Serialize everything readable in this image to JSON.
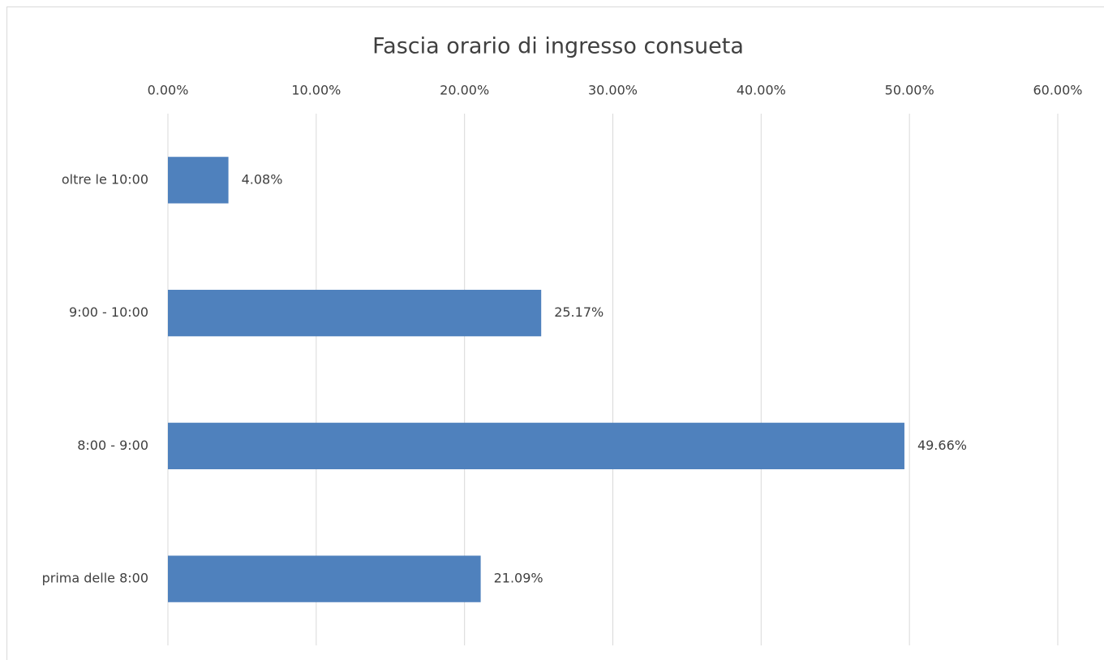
{
  "chart_data": {
    "type": "barh",
    "title": "Fascia orario di ingresso consueta",
    "categories": [
      "oltre le 10:00",
      "9:00 - 10:00",
      "8:00 - 9:00",
      "prima delle 8:00"
    ],
    "values": [
      4.08,
      25.17,
      49.66,
      21.09
    ],
    "value_labels": [
      "4.08%",
      "25.17%",
      "49.66%",
      "21.09%"
    ],
    "color": "#4f81bd",
    "xlim": [
      0,
      60
    ],
    "xticks": [
      {
        "value": 0,
        "label": "0.00%"
      },
      {
        "value": 10,
        "label": "10.00%"
      },
      {
        "value": 20,
        "label": "20.00%"
      },
      {
        "value": 30,
        "label": "30.00%"
      },
      {
        "value": 40,
        "label": "40.00%"
      },
      {
        "value": 50,
        "label": "50.00%"
      },
      {
        "value": 60,
        "label": "60.00%"
      }
    ],
    "grid": true
  }
}
